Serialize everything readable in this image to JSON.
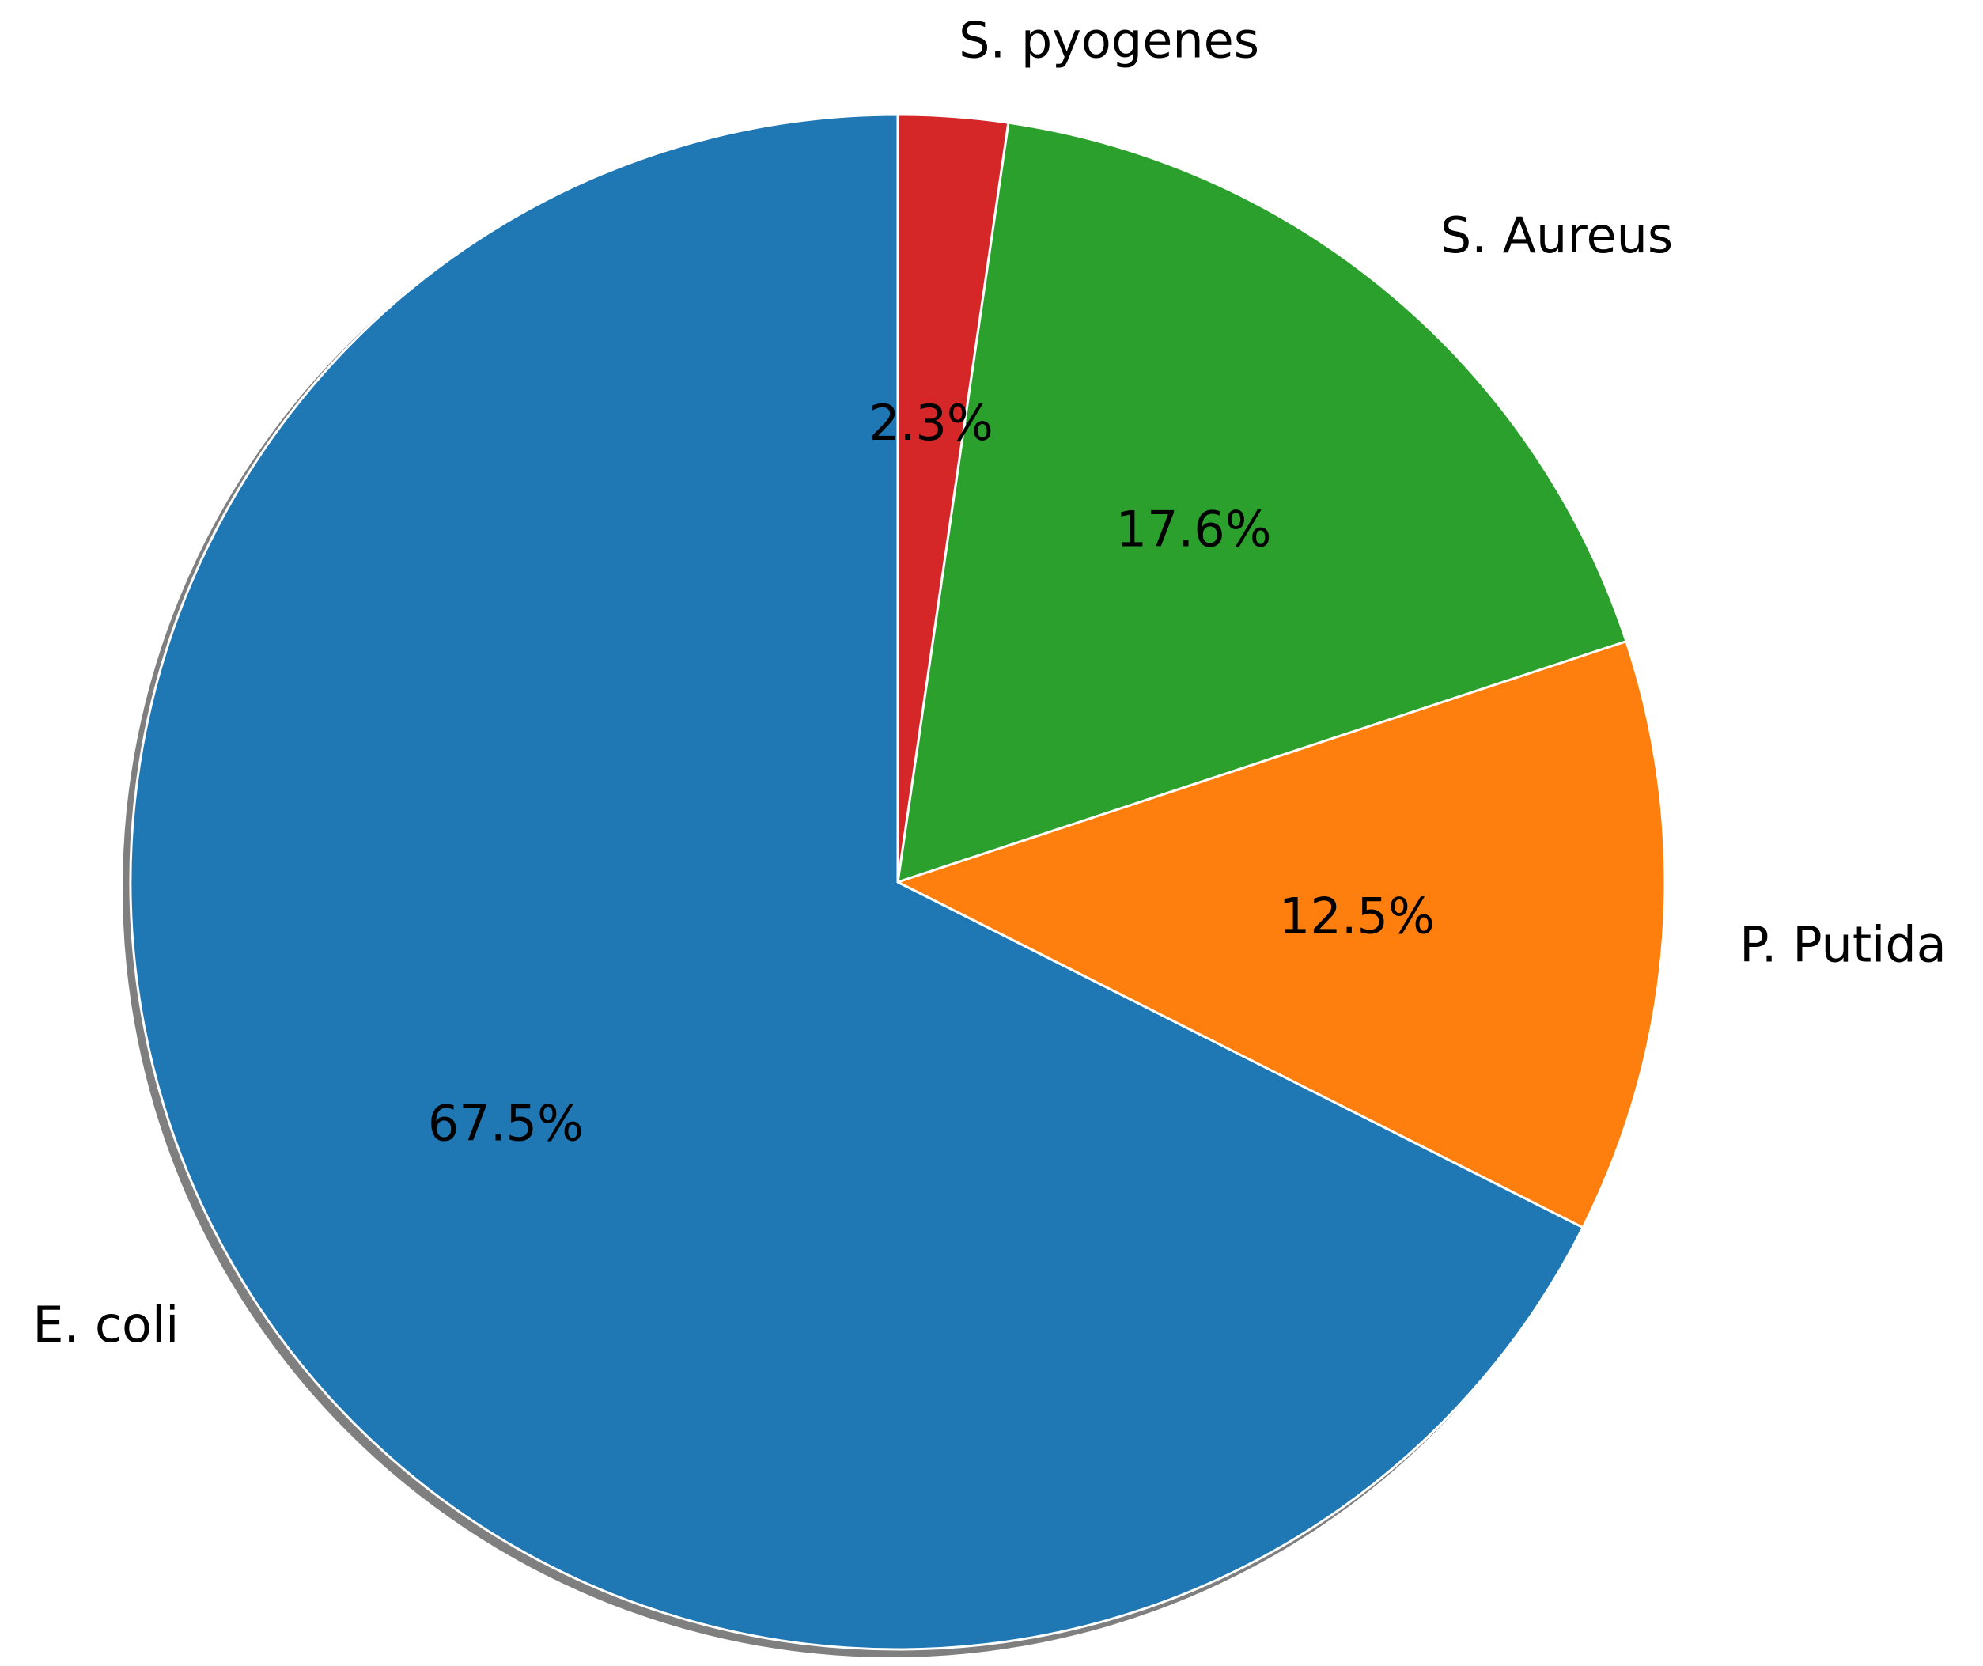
{
  "chart_data": {
    "type": "pie",
    "categories": [
      "E. coli",
      "P. Putida",
      "S. Aureus",
      "S. pyogenes"
    ],
    "values": [
      67.5,
      12.5,
      17.6,
      2.3
    ],
    "percent_labels": [
      "67.5%",
      "12.5%",
      "17.6%",
      "2.3%"
    ],
    "colors": [
      "#1f77b4",
      "#ff7f0e",
      "#2ca02c",
      "#d62728"
    ],
    "start_angle_deg": 90,
    "direction": "counterclockwise",
    "shadow": true,
    "legend": "none"
  }
}
